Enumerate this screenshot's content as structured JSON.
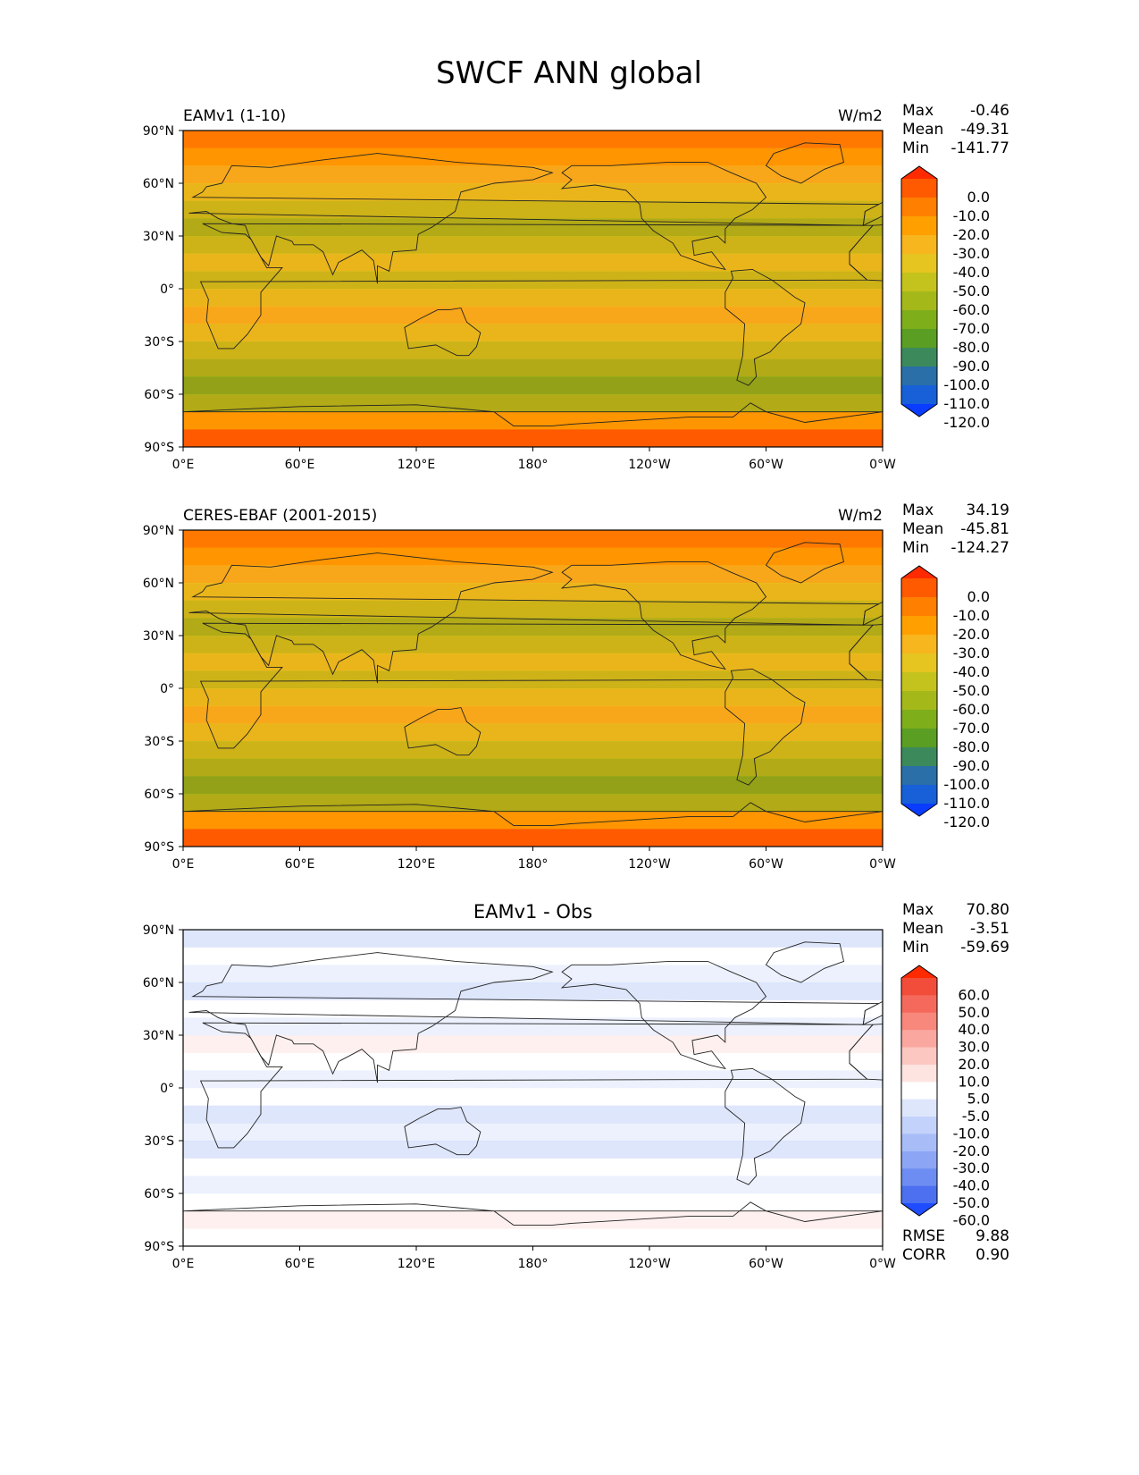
{
  "title": "SWCF ANN global",
  "chart_data": [
    {
      "type": "heatmap",
      "title": "EAMv1 (1-10)",
      "units": "W/m2",
      "stats": [
        {
          "label": "Max",
          "value": "-0.46"
        },
        {
          "label": "Mean",
          "value": "-49.31"
        },
        {
          "label": "Min",
          "value": "-141.77"
        }
      ],
      "xticks": [
        "0°E",
        "60°E",
        "120°E",
        "180°",
        "120°W",
        "60°W",
        "0°W"
      ],
      "yticks": [
        "90°N",
        "60°N",
        "30°N",
        "0°",
        "30°S",
        "60°S",
        "90°S"
      ],
      "colorbar": {
        "labels": [
          "0.0",
          "-10.0",
          "-20.0",
          "-30.0",
          "-40.0",
          "-50.0",
          "-60.0",
          "-70.0",
          "-80.0",
          "-90.0",
          "-100.0",
          "-110.0",
          "-120.0"
        ],
        "colors": [
          "#ff2a00",
          "#ff5a00",
          "#ff7f00",
          "#ffa000",
          "#f7b51e",
          "#e6c520",
          "#c4c21c",
          "#a4b81a",
          "#7fae1b",
          "#5a9e24",
          "#3c8a5c",
          "#2a6fa8",
          "#1760d8",
          "#0a3cff"
        ]
      },
      "colors": {
        "fill": "#ff5a00"
      }
    },
    {
      "type": "heatmap",
      "title": "CERES-EBAF (2001-2015)",
      "units": "W/m2",
      "stats": [
        {
          "label": "Max",
          "value": "34.19"
        },
        {
          "label": "Mean",
          "value": "-45.81"
        },
        {
          "label": "Min",
          "value": "-124.27"
        }
      ],
      "xticks": [
        "0°E",
        "60°E",
        "120°E",
        "180°",
        "120°W",
        "60°W",
        "0°W"
      ],
      "yticks": [
        "90°N",
        "60°N",
        "30°N",
        "0°",
        "30°S",
        "60°S",
        "90°S"
      ],
      "colorbar": {
        "labels": [
          "0.0",
          "-10.0",
          "-20.0",
          "-30.0",
          "-40.0",
          "-50.0",
          "-60.0",
          "-70.0",
          "-80.0",
          "-90.0",
          "-100.0",
          "-110.0",
          "-120.0"
        ],
        "colors": [
          "#ff2a00",
          "#ff5a00",
          "#ff7f00",
          "#ffa000",
          "#f7b51e",
          "#e6c520",
          "#c4c21c",
          "#a4b81a",
          "#7fae1b",
          "#5a9e24",
          "#3c8a5c",
          "#2a6fa8",
          "#1760d8",
          "#0a3cff"
        ]
      },
      "colors": {
        "fill": "#ff5a00"
      }
    },
    {
      "type": "heatmap",
      "title": "EAMv1 - Obs",
      "units": "",
      "stats": [
        {
          "label": "Max",
          "value": "70.80"
        },
        {
          "label": "Mean",
          "value": "-3.51"
        },
        {
          "label": "Min",
          "value": "-59.69"
        }
      ],
      "extra_stats": [
        {
          "label": "RMSE",
          "value": "9.88"
        },
        {
          "label": "CORR",
          "value": "0.90"
        }
      ],
      "xticks": [
        "0°E",
        "60°E",
        "120°E",
        "180°",
        "120°W",
        "60°W",
        "0°W"
      ],
      "yticks": [
        "90°N",
        "60°N",
        "30°N",
        "0°",
        "30°S",
        "60°S",
        "90°S"
      ],
      "colorbar": {
        "labels": [
          "60.0",
          "50.0",
          "40.0",
          "30.0",
          "20.0",
          "10.0",
          "5.0",
          "-5.0",
          "-10.0",
          "-20.0",
          "-30.0",
          "-40.0",
          "-50.0",
          "-60.0"
        ],
        "colors": [
          "#ff2a00",
          "#f24d3a",
          "#f5695c",
          "#f8877c",
          "#f9a79f",
          "#fbc7c0",
          "#fde4e0",
          "#ffffff",
          "#dde6fb",
          "#c3d2fa",
          "#a8bdf8",
          "#8ca6f5",
          "#6d8df2",
          "#4c70f0",
          "#1f4cff"
        ]
      },
      "colors": {
        "fill": "#ffffff"
      }
    }
  ]
}
